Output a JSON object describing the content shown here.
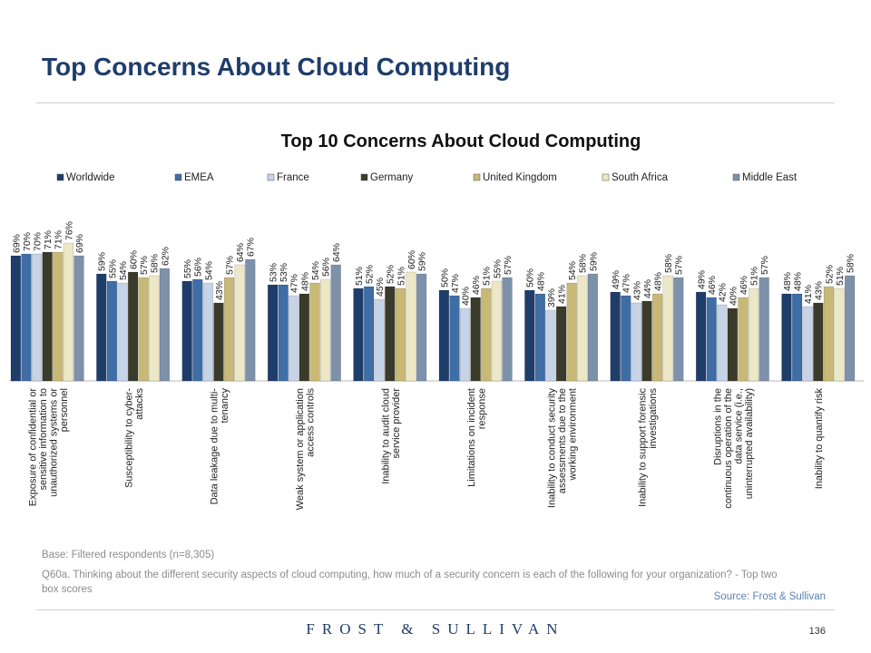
{
  "slide": {
    "title": "Top Concerns About Cloud Computing",
    "base": "Base: Filtered respondents (n=8,305)",
    "question": "Q60a. Thinking about the different security aspects of cloud computing, how much of a security concern is each of the following for your organization? - Top two box scores",
    "source": "Source: Frost & Sullivan",
    "brand": "FROST & SULLIVAN",
    "page_number": "136"
  },
  "chart_data": {
    "type": "bar",
    "title": "Top 10 Concerns About Cloud Computing",
    "legend_position": "top",
    "ylim": [
      0,
      100
    ],
    "grid": false,
    "value_suffix": "%",
    "categories": [
      [
        "Exposure of confidential or",
        "sensitive information to",
        "unauthorized systems or",
        "personnel"
      ],
      [
        "Susceptibility to cyber-",
        "attacks"
      ],
      [
        "Data leakage due to multi-",
        "tenancy"
      ],
      [
        "Weak system or application",
        "access controls"
      ],
      [
        "Inability to audit cloud",
        "service provider"
      ],
      [
        "Limitations on incident",
        "response"
      ],
      [
        "Inability to conduct security",
        "assessments due to the",
        "working environment"
      ],
      [
        "Inability to support forensic",
        "investigations"
      ],
      [
        "Disruptions in the",
        "continuous operation of the",
        "data service (i.e.,",
        "uninterrupted availability)"
      ],
      [
        "Inability to quantify risk"
      ]
    ],
    "series": [
      {
        "name": "Worldwide",
        "color": "#1f3d6b",
        "values": [
          69,
          59,
          55,
          53,
          51,
          50,
          50,
          49,
          49,
          48
        ]
      },
      {
        "name": "EMEA",
        "color": "#3f6da6",
        "values": [
          70,
          55,
          56,
          53,
          52,
          47,
          48,
          47,
          46,
          48
        ]
      },
      {
        "name": "France",
        "color": "#c7d3e6",
        "values": [
          70,
          54,
          54,
          47,
          45,
          40,
          39,
          43,
          42,
          41
        ]
      },
      {
        "name": "Germany",
        "color": "#3b3b2b",
        "values": [
          71,
          60,
          43,
          48,
          52,
          46,
          41,
          44,
          40,
          43
        ]
      },
      {
        "name": "United Kingdom",
        "color": "#c8b977",
        "values": [
          71,
          57,
          57,
          54,
          51,
          51,
          54,
          48,
          46,
          52
        ]
      },
      {
        "name": "South Africa",
        "color": "#ece7c6",
        "values": [
          76,
          58,
          64,
          56,
          60,
          55,
          58,
          58,
          51,
          51
        ]
      },
      {
        "name": "Middle East",
        "color": "#7e91ab",
        "values": [
          69,
          62,
          67,
          64,
          59,
          57,
          59,
          57,
          57,
          58
        ]
      }
    ]
  }
}
